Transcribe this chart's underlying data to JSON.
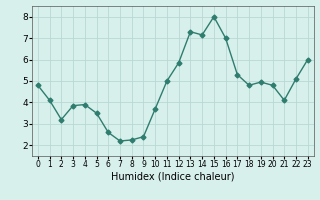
{
  "x": [
    0,
    1,
    2,
    3,
    4,
    5,
    6,
    7,
    8,
    9,
    10,
    11,
    12,
    13,
    14,
    15,
    16,
    17,
    18,
    19,
    20,
    21,
    22,
    23
  ],
  "y": [
    4.8,
    4.1,
    3.2,
    3.85,
    3.9,
    3.5,
    2.6,
    2.2,
    2.25,
    2.4,
    3.7,
    5.0,
    5.85,
    7.3,
    7.15,
    8.0,
    7.0,
    5.3,
    4.8,
    4.95,
    4.8,
    4.1,
    5.1,
    6.0
  ],
  "line_color": "#2e7d6e",
  "marker": "D",
  "marker_size": 2.5,
  "linewidth": 1.0,
  "bg_color": "#d8f0ec",
  "grid_color": "#b8d8d4",
  "xlabel": "Humidex (Indice chaleur)",
  "xlabel_fontsize": 7,
  "tick_fontsize_x": 5.5,
  "tick_fontsize_y": 6.5,
  "ylim": [
    1.5,
    8.5
  ],
  "xlim": [
    -0.5,
    23.5
  ],
  "yticks": [
    2,
    3,
    4,
    5,
    6,
    7,
    8
  ],
  "xticks": [
    0,
    1,
    2,
    3,
    4,
    5,
    6,
    7,
    8,
    9,
    10,
    11,
    12,
    13,
    14,
    15,
    16,
    17,
    18,
    19,
    20,
    21,
    22,
    23
  ]
}
